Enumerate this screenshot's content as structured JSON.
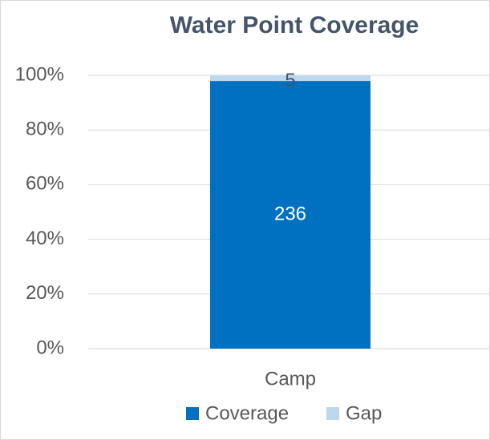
{
  "chart_data": {
    "type": "bar",
    "stacking": "percent",
    "title": "Water Point Coverage",
    "categories": [
      "Camp"
    ],
    "series": [
      {
        "name": "Coverage",
        "color": "#0070c0",
        "values": [
          236
        ]
      },
      {
        "name": "Gap",
        "color": "#bdd7ee",
        "values": [
          5
        ]
      }
    ],
    "ylim": [
      0,
      100
    ],
    "yticks": [
      {
        "value": 0,
        "label": "0%"
      },
      {
        "value": 20,
        "label": "20%"
      },
      {
        "value": 40,
        "label": "40%"
      },
      {
        "value": 60,
        "label": "60%"
      },
      {
        "value": 80,
        "label": "80%"
      },
      {
        "value": 100,
        "label": "100%"
      }
    ],
    "grid": true,
    "legend": "bottom"
  }
}
